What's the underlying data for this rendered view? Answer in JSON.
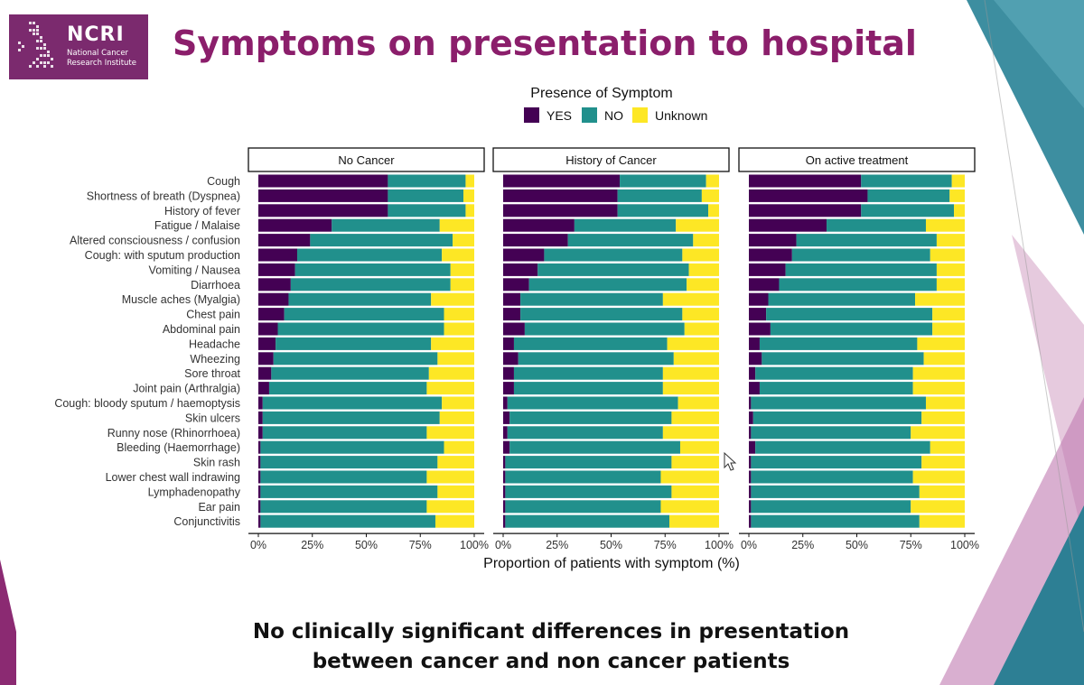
{
  "header": {
    "logo_name": "NCRI",
    "logo_subtitle": "National Cancer Research Institute",
    "title": "Symptoms on presentation to hospital"
  },
  "footer": {
    "line1": "No clinically significant differences in presentation",
    "line2": "between cancer and non cancer patients"
  },
  "colors": {
    "yes": "#440154",
    "no": "#21908c",
    "unknown": "#fde725",
    "title": "#8b1e6b",
    "brand": "#7b2a6e"
  },
  "chart_data": {
    "type": "bar",
    "orientation": "horizontal",
    "stacked": true,
    "legend": {
      "title": "Presence of Symptom",
      "position": "top",
      "entries": [
        "YES",
        "NO",
        "Unknown"
      ]
    },
    "xlabel": "Proportion of patients with symptom (%)",
    "xlim": [
      0,
      100
    ],
    "xticks": [
      "0%",
      "25%",
      "50%",
      "75%",
      "100%"
    ],
    "categories": [
      "Cough",
      "Shortness of breath (Dyspnea)",
      "History of fever",
      "Fatigue / Malaise",
      "Altered consciousness / confusion",
      "Cough: with sputum production",
      "Vomiting / Nausea",
      "Diarrhoea",
      "Muscle aches (Myalgia)",
      "Chest pain",
      "Abdominal pain",
      "Headache",
      "Wheezing",
      "Sore throat",
      "Joint pain (Arthralgia)",
      "Cough: bloody sputum / haemoptysis",
      "Skin ulcers",
      "Runny nose (Rhinorrhoea)",
      "Bleeding (Haemorrhage)",
      "Skin rash",
      "Lower chest wall indrawing",
      "Lymphadenopathy",
      "Ear pain",
      "Conjunctivitis"
    ],
    "panels": [
      {
        "title": "No Cancer",
        "yes": [
          60,
          60,
          60,
          34,
          24,
          18,
          17,
          15,
          14,
          12,
          9,
          8,
          7,
          6,
          5,
          2,
          2,
          2,
          1,
          1,
          1,
          1,
          1,
          1
        ],
        "no": [
          36,
          35,
          36,
          50,
          66,
          67,
          72,
          74,
          66,
          74,
          77,
          72,
          76,
          73,
          73,
          83,
          82,
          76,
          85,
          82,
          77,
          82,
          77,
          81
        ],
        "unknown": [
          4,
          5,
          4,
          16,
          10,
          15,
          11,
          11,
          20,
          14,
          14,
          20,
          17,
          21,
          22,
          15,
          16,
          22,
          14,
          17,
          22,
          17,
          22,
          18
        ]
      },
      {
        "title": "History of Cancer",
        "yes": [
          54,
          53,
          53,
          33,
          30,
          19,
          16,
          12,
          8,
          8,
          10,
          5,
          7,
          5,
          5,
          2,
          3,
          2,
          3,
          1,
          1,
          1,
          1,
          1
        ],
        "no": [
          40,
          39,
          42,
          47,
          58,
          64,
          70,
          73,
          66,
          75,
          74,
          71,
          72,
          69,
          69,
          79,
          75,
          72,
          79,
          77,
          72,
          77,
          72,
          76
        ],
        "unknown": [
          6,
          8,
          5,
          20,
          12,
          17,
          14,
          15,
          26,
          17,
          16,
          24,
          21,
          26,
          26,
          19,
          22,
          26,
          18,
          22,
          27,
          22,
          27,
          23
        ]
      },
      {
        "title": "On active treatment",
        "yes": [
          52,
          55,
          52,
          36,
          22,
          20,
          17,
          14,
          9,
          8,
          10,
          5,
          6,
          3,
          5,
          1,
          2,
          1,
          3,
          1,
          1,
          1,
          1,
          1
        ],
        "no": [
          42,
          38,
          43,
          46,
          65,
          64,
          70,
          73,
          68,
          77,
          75,
          73,
          75,
          73,
          71,
          81,
          78,
          74,
          81,
          79,
          75,
          78,
          74,
          78
        ],
        "unknown": [
          6,
          7,
          5,
          18,
          13,
          16,
          13,
          13,
          23,
          15,
          15,
          22,
          19,
          24,
          24,
          18,
          20,
          25,
          16,
          20,
          24,
          21,
          25,
          21
        ]
      }
    ]
  }
}
